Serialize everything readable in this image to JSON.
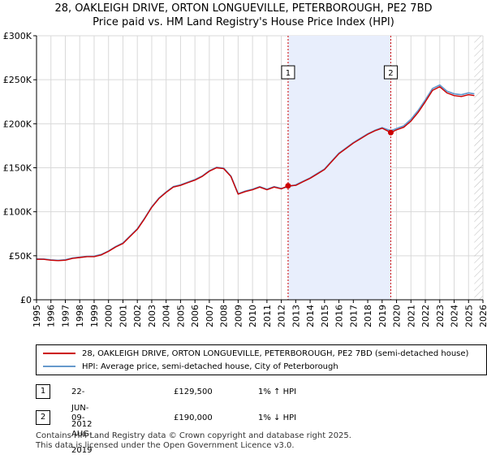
{
  "title": {
    "line1": "28, OAKLEIGH DRIVE, ORTON LONGUEVILLE, PETERBOROUGH, PE2 7BD",
    "line2": "Price paid vs. HM Land Registry's House Price Index (HPI)"
  },
  "chart_data": {
    "type": "line",
    "title": "Price paid vs. HM Land Registry's House Price Index (HPI)",
    "xlabel": "",
    "ylabel": "",
    "xlim": [
      1995,
      2026
    ],
    "ylim": [
      0,
      300000
    ],
    "y_ticks": [
      0,
      50000,
      100000,
      150000,
      200000,
      250000,
      300000
    ],
    "y_tick_labels": [
      "£0",
      "£50K",
      "£100K",
      "£150K",
      "£200K",
      "£250K",
      "£300K"
    ],
    "x_ticks": [
      1995,
      1996,
      1997,
      1998,
      1999,
      2000,
      2001,
      2002,
      2003,
      2004,
      2005,
      2006,
      2007,
      2008,
      2009,
      2010,
      2011,
      2012,
      2013,
      2014,
      2015,
      2016,
      2017,
      2018,
      2019,
      2020,
      2021,
      2022,
      2023,
      2024,
      2025,
      2026
    ],
    "grid": true,
    "x": [
      1995.0,
      1995.5,
      1996.0,
      1996.5,
      1997.0,
      1997.5,
      1998.0,
      1998.5,
      1999.0,
      1999.5,
      2000.0,
      2000.5,
      2001.0,
      2001.5,
      2002.0,
      2002.5,
      2003.0,
      2003.5,
      2004.0,
      2004.5,
      2005.0,
      2005.5,
      2006.0,
      2006.5,
      2007.0,
      2007.5,
      2008.0,
      2008.5,
      2009.0,
      2009.5,
      2010.0,
      2010.5,
      2011.0,
      2011.5,
      2012.0,
      2012.47,
      2013.0,
      2013.5,
      2014.0,
      2014.5,
      2015.0,
      2015.5,
      2016.0,
      2016.5,
      2017.0,
      2017.5,
      2018.0,
      2018.5,
      2019.0,
      2019.6,
      2020.0,
      2020.5,
      2021.0,
      2021.5,
      2022.0,
      2022.5,
      2023.0,
      2023.5,
      2024.0,
      2024.5,
      2025.0,
      2025.4
    ],
    "series": [
      {
        "name": "28, OAKLEIGH DRIVE, ORTON LONGUEVILLE, PETERBOROUGH, PE2 7BD (semi-detached house)",
        "color": "#cc0000",
        "values": [
          46000,
          46000,
          45000,
          44500,
          45000,
          47000,
          48000,
          49000,
          49000,
          51000,
          55000,
          60000,
          64000,
          72000,
          80000,
          92000,
          105000,
          115000,
          122000,
          128000,
          130000,
          133000,
          136000,
          140000,
          146000,
          150000,
          149000,
          140000,
          120000,
          123000,
          125000,
          128000,
          125000,
          128000,
          126000,
          129500,
          130000,
          134000,
          138000,
          143000,
          148000,
          157000,
          166000,
          172000,
          178000,
          183000,
          188000,
          192000,
          195000,
          190000,
          193000,
          196000,
          203000,
          213000,
          225000,
          238000,
          242000,
          235000,
          232000,
          231000,
          233000,
          232000
        ]
      },
      {
        "name": "HPI: Average price, semi-detached house, City of Peterborough",
        "color": "#6699cc",
        "values": [
          46500,
          46200,
          45300,
          44800,
          45400,
          47400,
          48300,
          49300,
          49500,
          51400,
          55400,
          60500,
          64500,
          72500,
          80500,
          92500,
          105500,
          115500,
          122500,
          128500,
          130500,
          133500,
          136500,
          140500,
          146500,
          150500,
          149500,
          140500,
          120500,
          123500,
          125500,
          128500,
          125500,
          128500,
          126500,
          128500,
          130500,
          134500,
          138500,
          143500,
          148500,
          157500,
          166500,
          172500,
          178500,
          183500,
          188500,
          192500,
          195500,
          192000,
          194500,
          197500,
          205000,
          215000,
          227000,
          240000,
          244000,
          237000,
          234000,
          233000,
          235000,
          234000
        ]
      }
    ],
    "shaded_region": [
      2012.47,
      2019.6
    ],
    "future_hatch_start": 2025.4,
    "markers": [
      {
        "label": "1",
        "x": 2012.47,
        "y": 129500
      },
      {
        "label": "2",
        "x": 2019.6,
        "y": 190000
      }
    ]
  },
  "legend": {
    "property": "28, OAKLEIGH DRIVE, ORTON LONGUEVILLE, PETERBOROUGH, PE2 7BD (semi-detached house)",
    "hpi": "HPI: Average price, semi-detached house, City of Peterborough"
  },
  "transactions": [
    {
      "num": "1",
      "date": "22-JUN-2012",
      "price": "£129,500",
      "hpi": "1% ↑ HPI"
    },
    {
      "num": "2",
      "date": "09-AUG-2019",
      "price": "£190,000",
      "hpi": "1% ↓ HPI"
    }
  ],
  "footer": {
    "line1": "Contains HM Land Registry data © Crown copyright and database right 2025.",
    "line2": "This data is licensed under the Open Government Licence v3.0."
  },
  "colors": {
    "property_line": "#cc0000",
    "hpi_line": "#6699cc",
    "shade": "#e8eefc",
    "marker_dash": "#cc0000"
  }
}
